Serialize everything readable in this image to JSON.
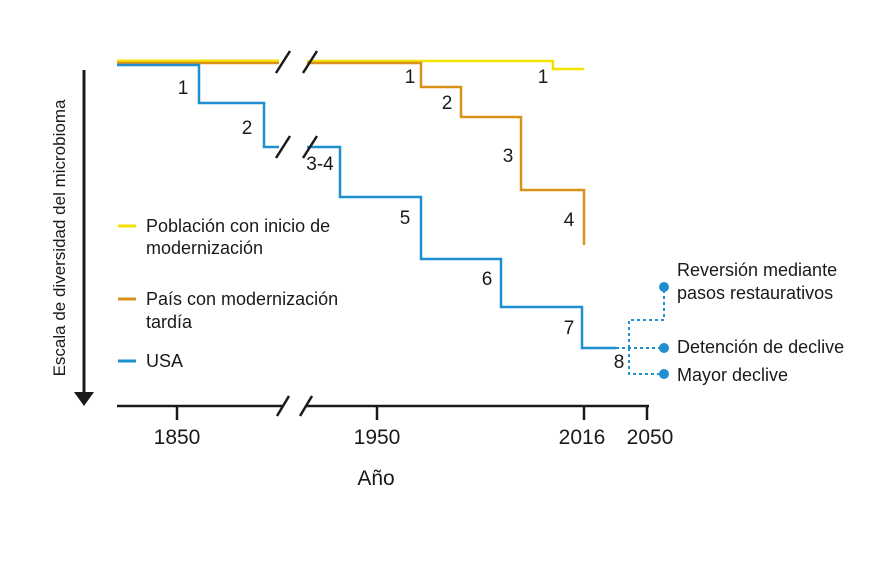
{
  "chart_data": {
    "type": "line",
    "title": "",
    "xlabel": "Año",
    "ylabel": "Escala de diversidad del microbioma",
    "x_ticks": [
      "1850",
      "1950",
      "2016",
      "2050"
    ],
    "axis_break": true,
    "series": [
      {
        "name": "Población con inicio de modernización",
        "name_lines": [
          "Población con inicio de",
          "modernización"
        ],
        "color": "#f5e100",
        "steps": [
          {
            "label": "1"
          }
        ]
      },
      {
        "name": "País con modernización tardía",
        "name_lines": [
          "País con modernización",
          "tardía"
        ],
        "color": "#d99218",
        "steps": [
          {
            "label": "1"
          },
          {
            "label": "2"
          },
          {
            "label": "3"
          },
          {
            "label": "4"
          }
        ]
      },
      {
        "name": "USA",
        "name_lines": [
          "USA"
        ],
        "color": "#1f8fcf",
        "steps": [
          {
            "label": "1"
          },
          {
            "label": "2"
          },
          {
            "label": "3-4"
          },
          {
            "label": "5"
          },
          {
            "label": "6"
          },
          {
            "label": "7"
          },
          {
            "label": "8"
          }
        ]
      }
    ],
    "projections": [
      {
        "label_lines": [
          "Reversión mediante",
          "pasos restaurativos"
        ]
      },
      {
        "label_lines": [
          "Detención de declive"
        ]
      },
      {
        "label_lines": [
          "Mayor declive"
        ]
      }
    ]
  }
}
